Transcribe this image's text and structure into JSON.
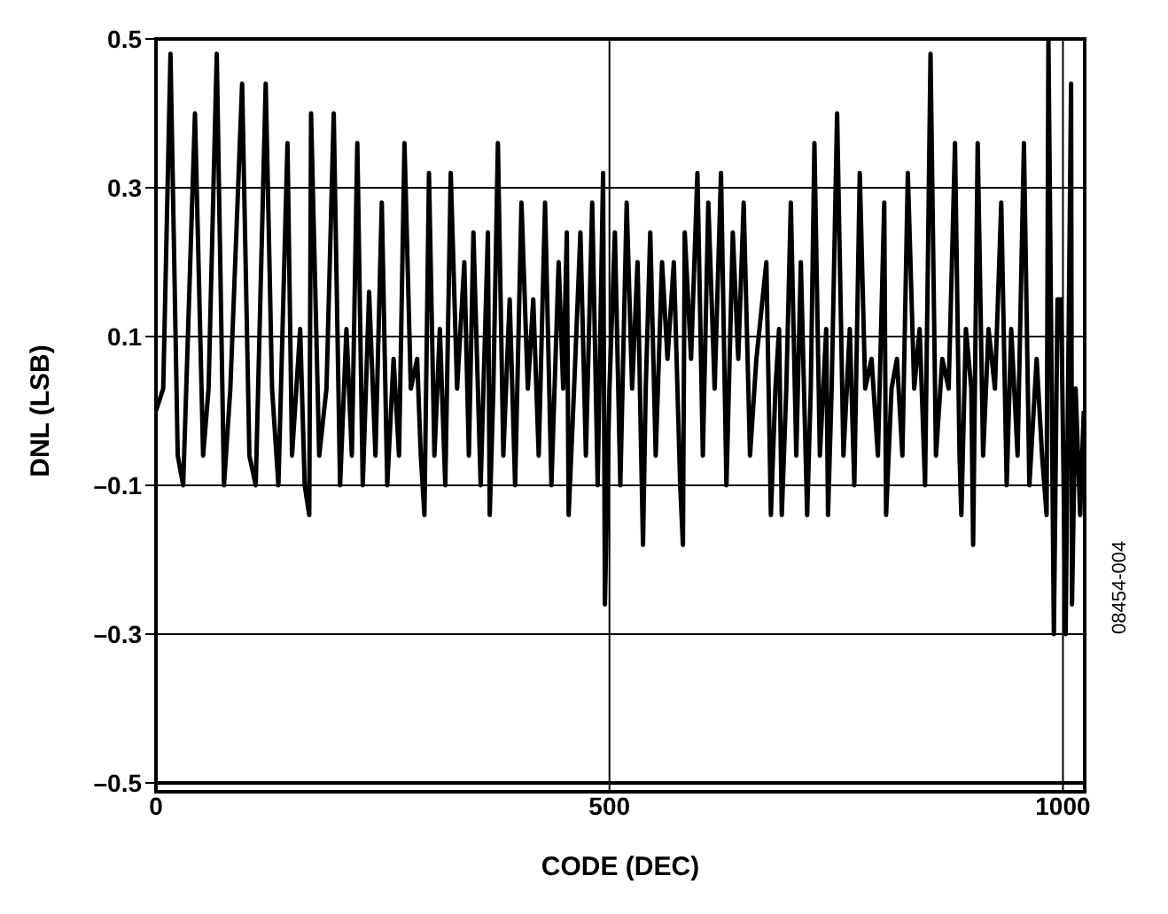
{
  "chart_data": {
    "type": "line",
    "xlabel": "CODE (DEC)",
    "ylabel": "DNL (LSB)",
    "annotations": [
      "08454-004"
    ],
    "xlim": [
      0,
      1024
    ],
    "xticks": [
      0,
      500,
      1000
    ],
    "ylim": [
      -0.5,
      0.5
    ],
    "yticks": [
      {
        "value": -0.5,
        "label": "–0.5"
      },
      {
        "value": -0.3,
        "label": "–0.3"
      },
      {
        "value": -0.1,
        "label": "–0.1"
      },
      0.1,
      0.3,
      0.5
    ],
    "grid": true,
    "marker": "none",
    "line_style": "solid",
    "series": [
      {
        "color": "#000000",
        "x": [
          0,
          8,
          16,
          24,
          30,
          43,
          52,
          58,
          67,
          75,
          82,
          95,
          103,
          110,
          121,
          128,
          135,
          145,
          150,
          159,
          164,
          169,
          171,
          180,
          188,
          196,
          203,
          210,
          216,
          222,
          228,
          235,
          242,
          249,
          255,
          262,
          268,
          274,
          281,
          288,
          292,
          296,
          301,
          307,
          313,
          319,
          325,
          332,
          340,
          345,
          350,
          358,
          366,
          368,
          372,
          377,
          383,
          390,
          396,
          403,
          410,
          416,
          422,
          429,
          436,
          444,
          449,
          453,
          455,
          461,
          468,
          474,
          481,
          487,
          493,
          495,
          500,
          506,
          512,
          519,
          525,
          531,
          535,
          537,
          540,
          545,
          551,
          558,
          564,
          571,
          578,
          581,
          583,
          590,
          597,
          603,
          609,
          616,
          623,
          629,
          636,
          642,
          648,
          655,
          662,
          673,
          678,
          683,
          687,
          690,
          695,
          700,
          706,
          711,
          718,
          722,
          726,
          732,
          739,
          741,
          745,
          751,
          758,
          765,
          770,
          776,
          782,
          789,
          796,
          803,
          805,
          811,
          817,
          823,
          829,
          836,
          842,
          848,
          854,
          860,
          867,
          874,
          881,
          886,
          888,
          893,
          899,
          901,
          906,
          912,
          918,
          925,
          932,
          938,
          943,
          950,
          957,
          963,
          971,
          977,
          982,
          984,
          987,
          990,
          994,
          998,
          1003,
          1006,
          1009,
          1010,
          1014,
          1019,
          1023
        ],
        "values": [
          0,
          0.03,
          0.48,
          -0.06,
          -0.1,
          0.4,
          -0.06,
          0.03,
          0.48,
          -0.1,
          0.03,
          0.44,
          -0.06,
          -0.1,
          0.44,
          0.03,
          -0.1,
          0.36,
          -0.06,
          0.11,
          -0.1,
          -0.14,
          0.4,
          -0.06,
          0.03,
          0.4,
          -0.1,
          0.11,
          -0.06,
          0.36,
          -0.1,
          0.16,
          -0.06,
          0.28,
          -0.1,
          0.07,
          -0.06,
          0.36,
          0.03,
          0.07,
          -0.06,
          -0.14,
          0.32,
          -0.06,
          0.11,
          -0.1,
          0.32,
          0.03,
          0.2,
          -0.06,
          0.24,
          -0.1,
          0.24,
          -0.14,
          0.03,
          0.36,
          -0.06,
          0.15,
          -0.1,
          0.28,
          0.03,
          0.15,
          -0.06,
          0.28,
          -0.1,
          0.2,
          0.03,
          0.24,
          -0.14,
          0.03,
          0.24,
          -0.06,
          0.28,
          -0.1,
          0.32,
          -0.26,
          0.03,
          0.24,
          -0.1,
          0.28,
          0.03,
          0.2,
          -0.06,
          -0.18,
          0.03,
          0.24,
          -0.06,
          0.2,
          0.07,
          0.2,
          -0.1,
          -0.18,
          0.24,
          0.07,
          0.32,
          -0.06,
          0.28,
          0.03,
          0.32,
          -0.1,
          0.24,
          0.07,
          0.28,
          -0.06,
          0.07,
          0.2,
          -0.14,
          0.03,
          0.11,
          -0.14,
          0.03,
          0.28,
          -0.06,
          0.2,
          -0.14,
          0.03,
          0.36,
          -0.06,
          0.11,
          -0.14,
          0.03,
          0.4,
          -0.06,
          0.11,
          -0.1,
          0.32,
          0.03,
          0.07,
          -0.06,
          0.28,
          -0.14,
          0.03,
          0.07,
          -0.06,
          0.32,
          0.03,
          0.11,
          -0.1,
          0.48,
          -0.06,
          0.07,
          0.03,
          0.36,
          -0.06,
          -0.14,
          0.11,
          0.03,
          -0.18,
          0.36,
          -0.06,
          0.11,
          0.03,
          0.28,
          -0.1,
          0.11,
          -0.06,
          0.36,
          -0.1,
          0.07,
          -0.06,
          -0.14,
          0.5,
          0.11,
          -0.3,
          0.15,
          0.15,
          -0.3,
          0.07,
          0.44,
          -0.26,
          0.03,
          -0.14,
          0
        ]
      }
    ]
  }
}
